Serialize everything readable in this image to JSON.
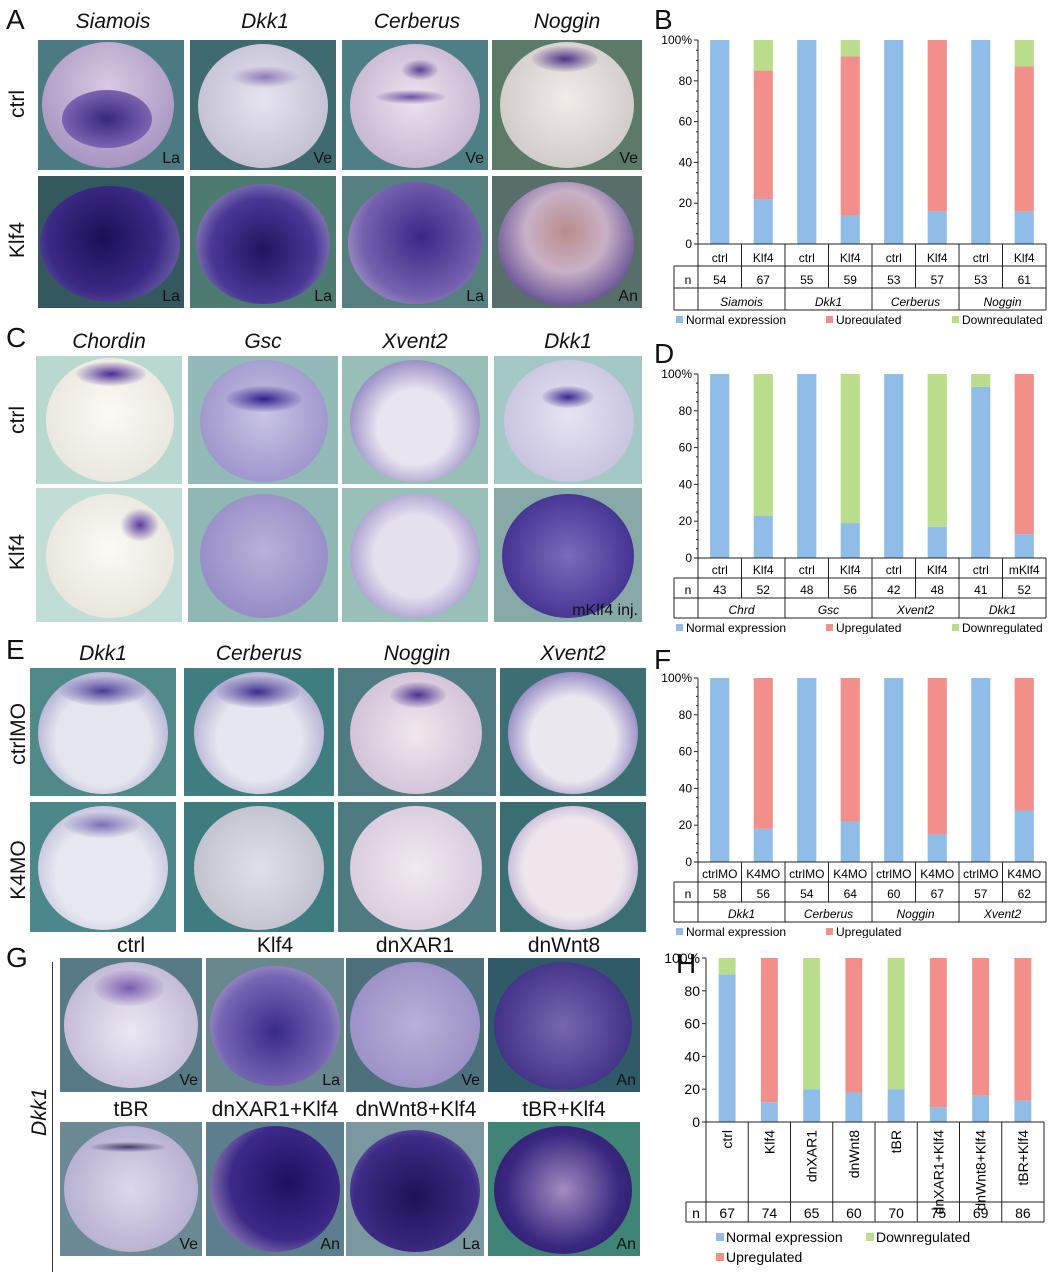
{
  "panels": {
    "A": {
      "label": "A",
      "genes": [
        "Siamois",
        "Dkk1",
        "Cerberus",
        "Noggin"
      ],
      "rows": [
        "ctrl",
        "Klf4"
      ],
      "views": [
        [
          "La",
          "Ve",
          "Ve",
          "Ve"
        ],
        [
          "La",
          "La",
          "La",
          "An"
        ]
      ]
    },
    "C": {
      "label": "C",
      "genes": [
        "Chordin",
        "Gsc",
        "Xvent2",
        "Dkk1"
      ],
      "rows": [
        "ctrl",
        "Klf4"
      ],
      "note": "mKlf4 inj."
    },
    "E": {
      "label": "E",
      "genes": [
        "Dkk1",
        "Cerberus",
        "Noggin",
        "Xvent2"
      ],
      "rows": [
        "ctrlMO",
        "K4MO"
      ]
    },
    "G": {
      "label": "G",
      "side_label": "Dkk1",
      "top_conditions": [
        "ctrl",
        "Klf4",
        "dnXAR1",
        "dnWnt8"
      ],
      "bottom_conditions": [
        "tBR",
        "dnXAR1+Klf4",
        "dnWnt8+Klf4",
        "tBR+Klf4"
      ],
      "views": [
        [
          "Ve",
          "La",
          "Ve",
          "An"
        ],
        [
          "Ve",
          "An",
          "La",
          "An"
        ]
      ]
    }
  },
  "colors": {
    "normal": "#8fbde8",
    "up": "#f1908a",
    "down": "#b9dd8a"
  },
  "chart_data": [
    {
      "id": "B",
      "label": "B",
      "type": "bar",
      "stacked": true,
      "categories": [
        "ctrl",
        "Klf4",
        "ctrl",
        "Klf4",
        "ctrl",
        "Klf4",
        "ctrl",
        "Klf4"
      ],
      "n": [
        "54",
        "67",
        "55",
        "59",
        "53",
        "57",
        "53",
        "61"
      ],
      "groups": [
        "Siamois",
        "Dkk1",
        "Cerberus",
        "Noggin"
      ],
      "series": [
        {
          "name": "Normal expression",
          "values": [
            100,
            22,
            100,
            14,
            100,
            16,
            100,
            16
          ]
        },
        {
          "name": "Upregulated",
          "values": [
            0,
            63,
            0,
            78,
            0,
            84,
            0,
            71
          ]
        },
        {
          "name": "Downregulated",
          "values": [
            0,
            15,
            0,
            8,
            0,
            0,
            0,
            13
          ]
        }
      ],
      "yticks": [
        "0",
        "20",
        "40",
        "60",
        "80",
        "100%"
      ],
      "ylim": [
        0,
        100
      ],
      "n_label": "n"
    },
    {
      "id": "D",
      "label": "D",
      "type": "bar",
      "stacked": true,
      "categories": [
        "ctrl",
        "Klf4",
        "ctrl",
        "Klf4",
        "ctrl",
        "Klf4",
        "ctrl",
        "mKlf4"
      ],
      "n": [
        "43",
        "52",
        "48",
        "56",
        "42",
        "48",
        "41",
        "52"
      ],
      "groups": [
        "Chrd",
        "Gsc",
        "Xvent2",
        "Dkk1"
      ],
      "series": [
        {
          "name": "Normal expression",
          "values": [
            100,
            23,
            100,
            19,
            100,
            17,
            93,
            13
          ]
        },
        {
          "name": "Upregulated",
          "values": [
            0,
            0,
            0,
            0,
            0,
            0,
            0,
            87
          ]
        },
        {
          "name": "Downregulated",
          "values": [
            0,
            77,
            0,
            81,
            0,
            83,
            7,
            0
          ]
        }
      ],
      "yticks": [
        "0",
        "20",
        "40",
        "60",
        "80",
        "100%"
      ],
      "ylim": [
        0,
        100
      ],
      "n_label": "n"
    },
    {
      "id": "F",
      "label": "F",
      "type": "bar",
      "stacked": true,
      "categories": [
        "ctrlMO",
        "K4MO",
        "ctrlMO",
        "K4MO",
        "ctrlMO",
        "K4MO",
        "ctrlMO",
        "K4MO"
      ],
      "n": [
        "58",
        "56",
        "54",
        "64",
        "60",
        "67",
        "57",
        "62"
      ],
      "groups": [
        "Dkk1",
        "Cerberus",
        "Noggin",
        "Xvent2"
      ],
      "series": [
        {
          "name": "Normal expression",
          "values": [
            100,
            18,
            100,
            22,
            100,
            15,
            100,
            28
          ]
        },
        {
          "name": "Upregulated",
          "values": [
            0,
            82,
            0,
            78,
            0,
            85,
            0,
            72
          ]
        }
      ],
      "yticks": [
        "0",
        "20",
        "40",
        "60",
        "80",
        "100%"
      ],
      "ylim": [
        0,
        100
      ],
      "n_label": "n"
    },
    {
      "id": "H",
      "label": "H",
      "type": "bar",
      "stacked": true,
      "categories": [
        "ctrl",
        "Klf4",
        "dnXAR1",
        "dnWnt8",
        "tBR",
        "dnXAR1+Klf4",
        "dnWnt8+Klf4",
        "tBR+Klf4"
      ],
      "n": [
        "67",
        "74",
        "65",
        "60",
        "70",
        "75",
        "69",
        "86"
      ],
      "series": [
        {
          "name": "Normal expression",
          "values": [
            90,
            12,
            20,
            18,
            20,
            9,
            16,
            13
          ]
        },
        {
          "name": "Downregulated",
          "values": [
            10,
            0,
            80,
            0,
            80,
            0,
            0,
            0
          ]
        },
        {
          "name": "Upregulated",
          "values": [
            0,
            88,
            0,
            82,
            0,
            91,
            84,
            87
          ]
        }
      ],
      "yticks": [
        "0",
        "20",
        "40",
        "60",
        "80",
        "100%"
      ],
      "ylim": [
        0,
        100
      ],
      "n_label": "n"
    }
  ]
}
